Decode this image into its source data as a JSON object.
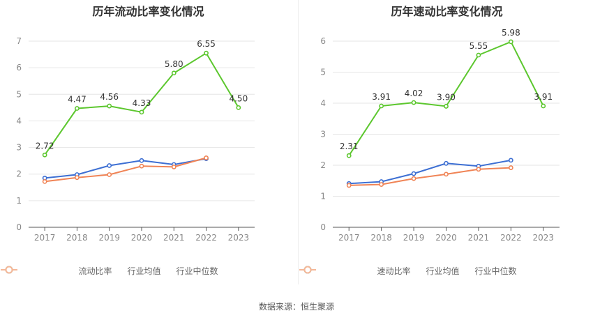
{
  "source": "数据来源：恒生聚源",
  "chart_data": [
    {
      "type": "line",
      "title": "历年流动比率变化情况",
      "categories": [
        "2017",
        "2018",
        "2019",
        "2020",
        "2021",
        "2022",
        "2023"
      ],
      "ylim": [
        0,
        7
      ],
      "yticks": [
        "0",
        "1",
        "2",
        "3",
        "4",
        "5",
        "6",
        "7"
      ],
      "grid": true,
      "legend_position": "bottom",
      "series": [
        {
          "name": "流动比率",
          "color": "#5cc72e",
          "values": [
            2.72,
            4.47,
            4.56,
            4.33,
            5.8,
            6.55,
            4.5
          ],
          "labels": [
            "2.72",
            "4.47",
            "4.56",
            "4.33",
            "5.80",
            "6.55",
            "4.50"
          ]
        },
        {
          "name": "行业均值",
          "color": "#3d6fd3",
          "legend_color": "#8fb2ee",
          "values": [
            1.85,
            1.98,
            2.32,
            2.51,
            2.36,
            2.58,
            null
          ]
        },
        {
          "name": "行业中位数",
          "color": "#f08456",
          "legend_color": "#f5b797",
          "values": [
            1.72,
            1.87,
            1.98,
            2.3,
            2.27,
            2.61,
            null
          ]
        }
      ]
    },
    {
      "type": "line",
      "title": "历年速动比率变化情况",
      "categories": [
        "2017",
        "2018",
        "2019",
        "2020",
        "2021",
        "2022",
        "2023"
      ],
      "ylim": [
        0,
        6
      ],
      "yticks": [
        "0",
        "1",
        "2",
        "3",
        "4",
        "5",
        "6"
      ],
      "grid": true,
      "legend_position": "bottom",
      "series": [
        {
          "name": "速动比率",
          "color": "#5cc72e",
          "values": [
            2.31,
            3.91,
            4.02,
            3.9,
            5.55,
            5.98,
            3.91
          ],
          "labels": [
            "2.31",
            "3.91",
            "4.02",
            "3.90",
            "5.55",
            "5.98",
            "3.91"
          ]
        },
        {
          "name": "行业均值",
          "color": "#3d6fd3",
          "legend_color": "#8fb2ee",
          "values": [
            1.41,
            1.47,
            1.73,
            2.06,
            1.97,
            2.16,
            null
          ]
        },
        {
          "name": "行业中位数",
          "color": "#f08456",
          "legend_color": "#f5b797",
          "values": [
            1.35,
            1.38,
            1.57,
            1.71,
            1.87,
            1.92,
            null
          ]
        }
      ]
    }
  ]
}
